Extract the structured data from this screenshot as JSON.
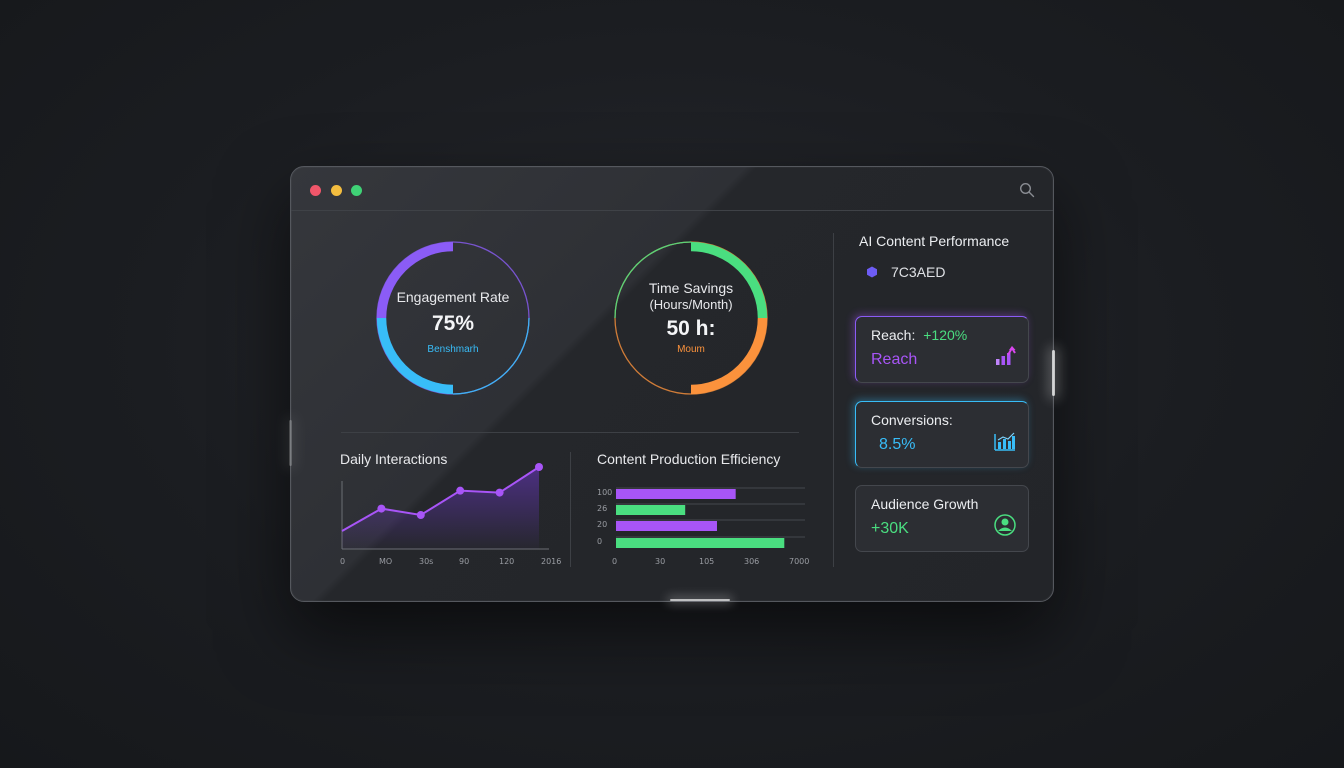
{
  "window": {
    "controls": [
      "close",
      "minimize",
      "maximize"
    ],
    "search_icon": "search-icon"
  },
  "gauges": {
    "engagement": {
      "title": "Engagement Rate",
      "value": "75%",
      "sub": "Benshmarh",
      "colors": {
        "top": "#8b5cf6",
        "bottom": "#38bdf8"
      }
    },
    "time": {
      "title_line1": "Time Savings",
      "title_line2": "(Hours/Month)",
      "value": "50 h:",
      "sub": "Moum",
      "colors": {
        "top": "#4ade80",
        "bottom": "#fb923c"
      }
    }
  },
  "panels": {
    "daily": {
      "title": "Daily Interactions",
      "x_ticks": [
        "0",
        "MO",
        "30s",
        "90",
        "120",
        "2016"
      ]
    },
    "efficiency": {
      "title": "Content Production Efficiency",
      "y_ticks": [
        "100",
        "26",
        "20",
        "0"
      ],
      "x_ticks": [
        "0",
        "30",
        "105",
        "306",
        "7000"
      ]
    }
  },
  "sidebar": {
    "title": "AI Content Performance",
    "color_label": "7C3AED",
    "cards": {
      "reach": {
        "label": "Reach:",
        "change": "+120%",
        "value": "Reach"
      },
      "conversions": {
        "label": "Conversions:",
        "value": "8.5%"
      },
      "growth": {
        "label": "Audience Growth",
        "value": "+30K"
      }
    }
  },
  "colors": {
    "purple": "#a855f7",
    "green": "#4ade80",
    "blue": "#38bdf8",
    "orange": "#fb923c",
    "hex_icon": "#6d5cf5"
  },
  "chart_data": [
    {
      "type": "line",
      "title": "Daily Interactions",
      "x": [
        "0",
        "MO",
        "30s",
        "90",
        "120",
        "2016"
      ],
      "series": [
        {
          "values": [
            0.0,
            0.35,
            0.25,
            0.63,
            0.6,
            1.0
          ]
        }
      ]
    },
    {
      "type": "bar",
      "title": "Content Production Efficiency",
      "orientation": "horizontal",
      "categories": [
        "100",
        "26",
        "20",
        "0"
      ],
      "values": [
        0.64,
        0.37,
        0.54,
        0.9
      ],
      "bar_colors": [
        "#a855f7",
        "#4ade80",
        "#a855f7",
        "#4ade80"
      ]
    }
  ]
}
